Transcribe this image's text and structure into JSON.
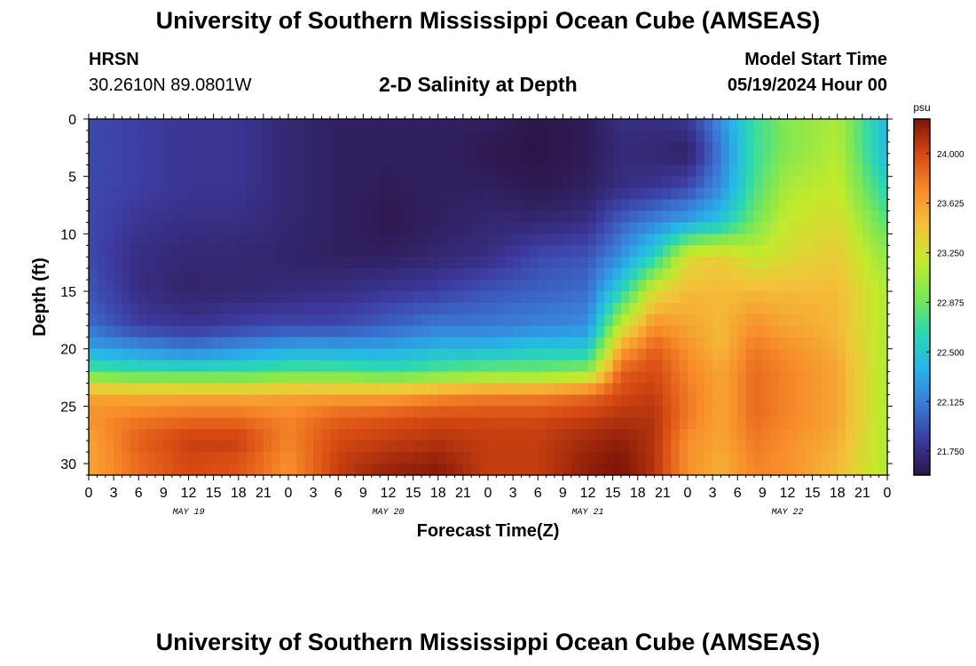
{
  "header": {
    "title": "University of Southern Mississippi Ocean Cube (AMSEAS)",
    "station": "HRSN",
    "coords": "30.2610N  89.0801W",
    "chart_title": "2-D Salinity at Depth",
    "start_label": "Model Start Time",
    "start_value": "05/19/2024 Hour 00"
  },
  "footer": {
    "title": "University of Southern Mississippi Ocean Cube (AMSEAS)"
  },
  "colors": {
    "colormap": [
      "#2b1546",
      "#3d3ba0",
      "#3a7bd8",
      "#27b5e8",
      "#2ad8b2",
      "#7ae755",
      "#c3ea2c",
      "#f3c33a",
      "#f88b2a",
      "#d74a12",
      "#7c1308"
    ]
  },
  "chart_data": {
    "type": "heatmap",
    "title": "2-D Salinity at Depth",
    "xlabel": "Forecast Time(Z)",
    "ylabel": "Depth (ft)",
    "xlim": [
      0,
      96
    ],
    "ylim": [
      0,
      31
    ],
    "x_tick_labels": [
      "0",
      "3",
      "6",
      "9",
      "12",
      "15",
      "18",
      "21",
      "0",
      "3",
      "6",
      "9",
      "12",
      "15",
      "18",
      "21",
      "0",
      "3",
      "6",
      "9",
      "12",
      "15",
      "18",
      "21",
      "0",
      "3",
      "6",
      "9",
      "12",
      "15",
      "18",
      "21",
      "0"
    ],
    "y_ticks": [
      0,
      5,
      10,
      15,
      20,
      25,
      30
    ],
    "day_labels": [
      {
        "hour": 12,
        "text": "MAY 19"
      },
      {
        "hour": 36,
        "text": "MAY 20"
      },
      {
        "hour": 60,
        "text": "MAY 21"
      },
      {
        "hour": 84,
        "text": "MAY 22"
      }
    ],
    "colorbar": {
      "unit": "psu",
      "range": [
        21.57,
        24.26
      ],
      "ticks": [
        "21.750",
        "22.125",
        "22.500",
        "22.875",
        "23.250",
        "23.625",
        "24.000"
      ]
    },
    "depths": [
      0,
      3,
      6,
      9,
      12,
      15,
      18,
      20,
      22,
      24,
      26,
      28,
      30,
      31
    ],
    "times": [
      0,
      6,
      12,
      18,
      24,
      30,
      36,
      42,
      48,
      54,
      60,
      64,
      68,
      72,
      76,
      80,
      84,
      90,
      96
    ],
    "values": [
      [
        21.9,
        21.85,
        21.8,
        21.8,
        21.7,
        21.65,
        21.65,
        21.65,
        21.65,
        21.57,
        21.62,
        21.75,
        21.75,
        21.8,
        22.2,
        22.7,
        22.95,
        23.1,
        22.4
      ],
      [
        21.9,
        21.85,
        21.8,
        21.8,
        21.7,
        21.65,
        21.65,
        21.65,
        21.6,
        21.57,
        21.62,
        21.72,
        21.7,
        21.65,
        22.1,
        22.7,
        22.95,
        23.15,
        22.4
      ],
      [
        21.9,
        21.85,
        21.8,
        21.8,
        21.7,
        21.65,
        21.62,
        21.65,
        21.65,
        21.6,
        21.65,
        21.75,
        21.8,
        21.9,
        22.2,
        22.75,
        23.1,
        23.2,
        22.6
      ],
      [
        21.9,
        21.8,
        21.75,
        21.75,
        21.7,
        21.65,
        21.6,
        21.65,
        21.7,
        21.7,
        21.75,
        22.0,
        22.15,
        22.3,
        22.5,
        22.9,
        23.2,
        23.3,
        22.8
      ],
      [
        21.9,
        21.75,
        21.7,
        21.7,
        21.68,
        21.65,
        21.65,
        21.7,
        21.75,
        21.9,
        21.95,
        22.2,
        22.6,
        23.3,
        23.4,
        23.2,
        23.3,
        23.4,
        23.0
      ],
      [
        21.95,
        21.75,
        21.68,
        21.7,
        21.72,
        21.75,
        21.8,
        21.85,
        21.95,
        22.0,
        22.05,
        22.6,
        23.3,
        23.5,
        23.5,
        23.5,
        23.5,
        23.5,
        23.1
      ],
      [
        22.05,
        21.85,
        21.8,
        21.85,
        21.9,
        21.9,
        22.0,
        22.1,
        22.1,
        22.15,
        22.2,
        23.2,
        23.7,
        23.6,
        23.5,
        23.7,
        23.6,
        23.5,
        23.1
      ],
      [
        22.3,
        22.2,
        22.1,
        22.2,
        22.3,
        22.3,
        22.3,
        22.4,
        22.4,
        22.5,
        22.5,
        23.6,
        23.9,
        23.7,
        23.5,
        23.8,
        23.7,
        23.55,
        23.1
      ],
      [
        22.8,
        22.7,
        22.7,
        22.7,
        22.8,
        22.8,
        22.7,
        22.8,
        22.9,
        22.9,
        23.0,
        23.9,
        24.0,
        23.75,
        23.6,
        23.85,
        23.75,
        23.6,
        23.1
      ],
      [
        23.6,
        23.55,
        23.55,
        23.55,
        23.6,
        23.6,
        23.6,
        23.7,
        23.75,
        23.75,
        23.85,
        24.0,
        24.05,
        23.8,
        23.6,
        23.85,
        23.75,
        23.6,
        23.1
      ],
      [
        23.7,
        23.8,
        23.85,
        23.85,
        23.75,
        23.9,
        23.95,
        24.0,
        24.0,
        24.0,
        24.05,
        24.1,
        24.1,
        23.8,
        23.6,
        23.85,
        23.75,
        23.6,
        23.1
      ],
      [
        23.6,
        23.9,
        24.05,
        24.05,
        23.75,
        24.0,
        24.05,
        24.1,
        24.05,
        24.05,
        24.15,
        24.2,
        24.1,
        23.7,
        23.6,
        23.8,
        23.7,
        23.55,
        23.1
      ],
      [
        23.6,
        23.85,
        24.0,
        23.95,
        23.7,
        24.05,
        24.15,
        24.2,
        24.05,
        24.05,
        24.2,
        24.25,
        24.1,
        23.7,
        23.55,
        23.75,
        23.7,
        23.5,
        23.1
      ],
      [
        23.6,
        23.85,
        24.0,
        23.95,
        23.7,
        24.05,
        24.2,
        24.22,
        24.05,
        24.05,
        24.2,
        24.26,
        24.1,
        23.7,
        23.55,
        23.75,
        23.7,
        23.5,
        23.1
      ]
    ]
  }
}
